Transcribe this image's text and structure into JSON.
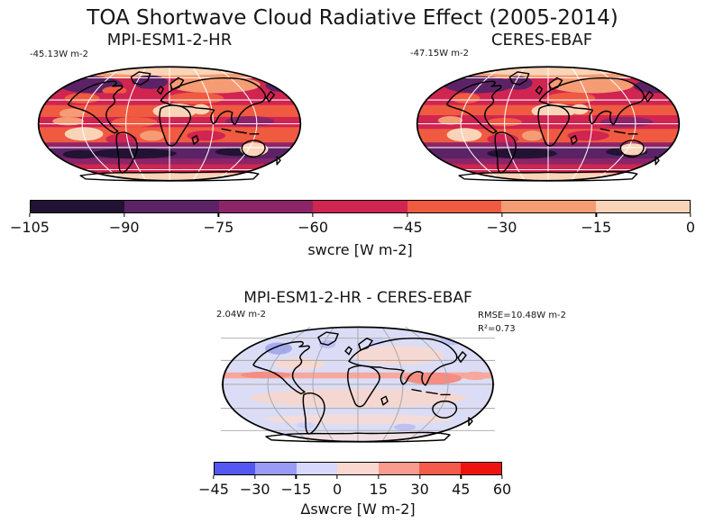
{
  "title": "TOA Shortwave Cloud Radiative Effect (2005-2014)",
  "panels": {
    "model": {
      "title": "MPI-ESM1-2-HR",
      "mean_label": "-45.13W m-2"
    },
    "obs": {
      "title": "CERES-EBAF",
      "mean_label": "-47.15W m-2"
    },
    "diff": {
      "title": "MPI-ESM1-2-HR - CERES-EBAF",
      "mean_label": "2.04W m-2",
      "rmse_label": "RMSE=10.48W m-2",
      "r2_label": "R²=0.73"
    }
  },
  "colorbar_top": {
    "label": "swcre [W m-2]",
    "ticks": [
      "−105",
      "−90",
      "−75",
      "−60",
      "−45",
      "−30",
      "−15",
      "0"
    ],
    "colors": [
      "#221233",
      "#5B2365",
      "#8E2468",
      "#D02451",
      "#EF5A41",
      "#F59C74",
      "#FAD4B8"
    ]
  },
  "colorbar_diff": {
    "label": "Δswcre [W m-2]",
    "ticks": [
      "−45",
      "−30",
      "−15",
      "0",
      "15",
      "30",
      "45",
      "60"
    ],
    "colors": [
      "#5457F2",
      "#9A9BF7",
      "#D7D8FB",
      "#FAD7CF",
      "#F99B8E",
      "#F45B4B",
      "#EF1310"
    ]
  },
  "chart_data": [
    {
      "type": "heatmap",
      "subtype": "global-map",
      "title": "MPI-ESM1-2-HR",
      "variable": "swcre",
      "units": "W m-2",
      "projection": "robinson",
      "area_mean": -45.13,
      "colorbar_range": [
        -105,
        0
      ],
      "colorbar_step": 15,
      "colorbar_label": "swcre [W m-2]",
      "graticule": "white"
    },
    {
      "type": "heatmap",
      "subtype": "global-map",
      "title": "CERES-EBAF",
      "variable": "swcre",
      "units": "W m-2",
      "projection": "robinson",
      "area_mean": -47.15,
      "colorbar_range": [
        -105,
        0
      ],
      "colorbar_step": 15,
      "colorbar_label": "swcre [W m-2]",
      "graticule": "white"
    },
    {
      "type": "heatmap",
      "subtype": "global-map-difference",
      "title": "MPI-ESM1-2-HR - CERES-EBAF",
      "variable": "Δswcre",
      "units": "W m-2",
      "projection": "robinson",
      "area_mean": 2.04,
      "rmse": 10.48,
      "r2": 0.73,
      "colorbar_range": [
        -45,
        60
      ],
      "colorbar_step": 15,
      "colorbar_label": "Δswcre [W m-2]",
      "graticule": "gray"
    }
  ]
}
